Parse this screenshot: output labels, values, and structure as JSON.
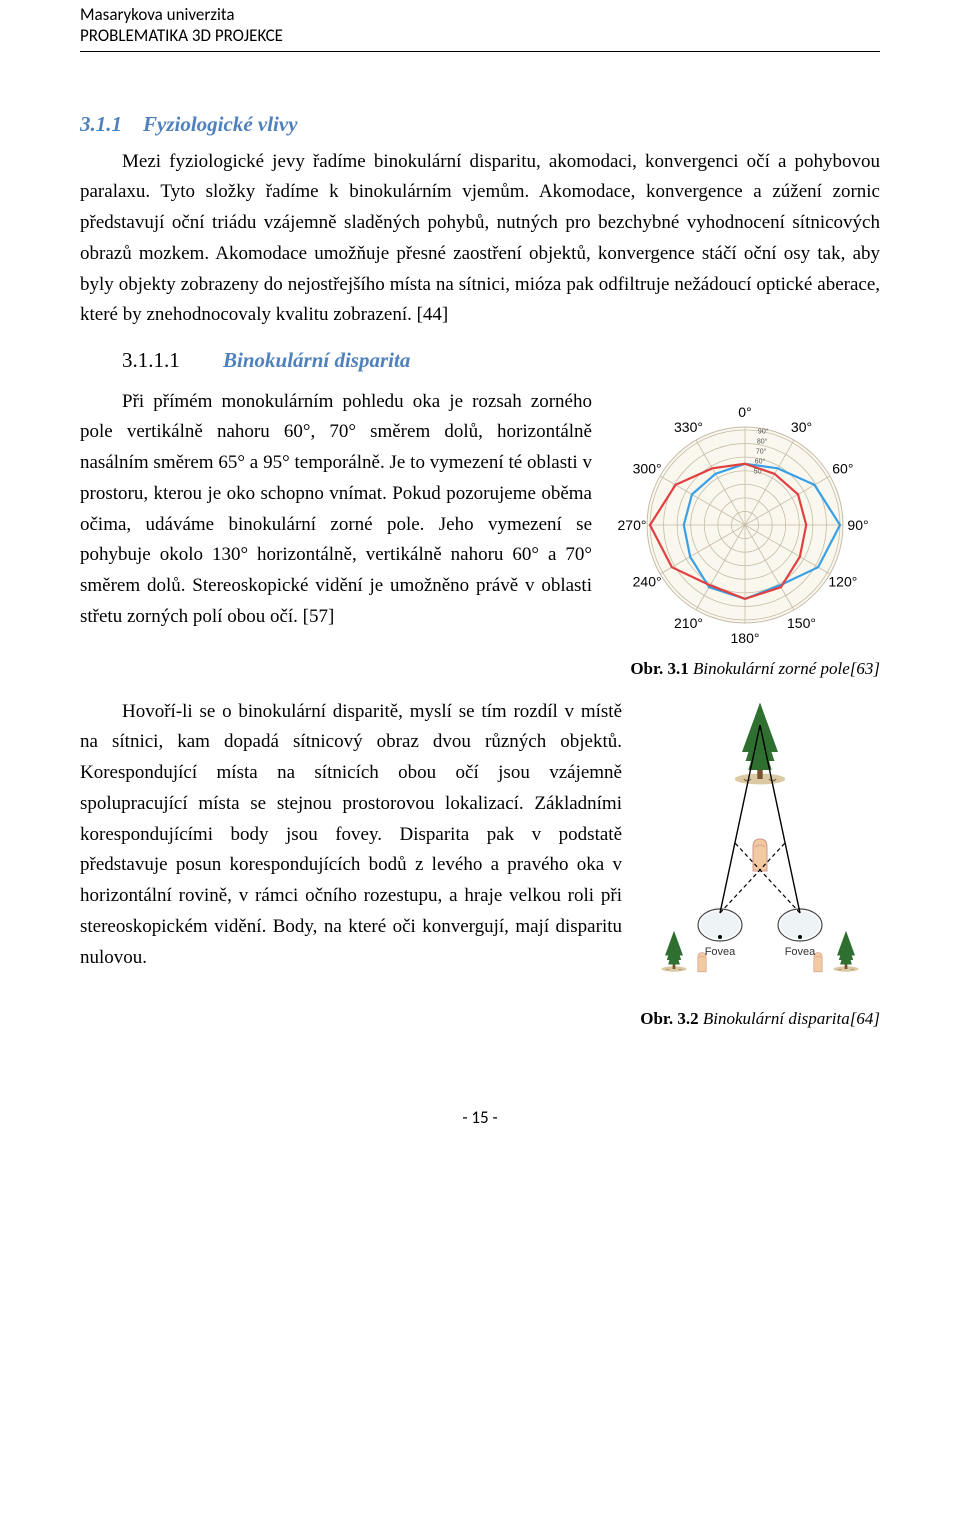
{
  "header": {
    "line1": "Masarykova univerzita",
    "line2": "PROBLEMATIKA 3D PROJEKCE"
  },
  "section": {
    "num": "3.1.1",
    "title": "Fyziologické vlivy",
    "para1": "Mezi fyziologické jevy řadíme binokulární disparitu, akomodaci, konvergenci očí a pohybovou paralaxu. Tyto složky řadíme k binokulárním vjemům. Akomodace, konvergence a zúžení zornic představují oční triádu vzájemně sladěných pohybů, nutných pro bezchybné vyhodnocení sítnicových obrazů mozkem. Akomodace umožňuje přesné zaostření objektů, konvergence stáčí oční osy tak, aby byly objekty zobrazeny do nejostřejšího místa na sítnici, mióza pak odfiltruje nežádoucí optické aberace, které by znehodnocovaly kvalitu zobrazení. [44]"
  },
  "subsection": {
    "num": "3.1.1.1",
    "title": "Binokulární disparita",
    "para1": "Při přímém monokulárním pohledu oka je rozsah zorného pole vertikálně nahoru 60°, 70° směrem dolů, horizontálně nasálním směrem 65° a 95° temporálně. Je to vymezení té oblasti v prostoru, kterou je oko schopno vnímat. Pokud pozorujeme oběma očima, udáváme binokulární zorné pole. Jeho vymezení se pohybuje okolo 130° horizontálně, vertikálně nahoru 60° a 70° směrem dolů. Stereoskopické vidění je umožněno právě v oblasti střetu zorných polí obou očí. [57]",
    "para2": "Hovoří-li se o binokulární disparitě, myslí se tím rozdíl v místě na sítnici, kam dopadá sítnicový obraz dvou různých objektů. Korespondující místa na sítnicích obou očí jsou vzájemně spolupracující místa se stejnou prostorovou lokalizací. Základními korespondujícími body jsou fovey. Disparita pak v podstatě představuje posun korespondujících bodů z levého a pravého oka v horizontální rovině, v rámci očního rozestupu, a hraje velkou roli při stereoskopickém vidění. Body, na které oči konvergují, mají disparitu nulovou."
  },
  "fig1": {
    "caption_bold": "Obr. 3.1",
    "caption_italic": " Binokulární zorné pole[63]",
    "angles": [
      "0°",
      "30°",
      "60°",
      "90°",
      "120°",
      "150°",
      "180°",
      "210°",
      "240°",
      "270°",
      "300°",
      "330°"
    ],
    "inner_labels": [
      "90°",
      "80°",
      "70°",
      "60°",
      "50°"
    ],
    "ring_count": 7,
    "colors": {
      "grid": "#c7bca8",
      "left_eye": "#3aa0e6",
      "right_eye": "#e04040",
      "background": "#faf7ee"
    },
    "left_poly_deg_r": [
      [
        0,
        58
      ],
      [
        30,
        62
      ],
      [
        60,
        76
      ],
      [
        90,
        90
      ],
      [
        120,
        80
      ],
      [
        150,
        66
      ],
      [
        180,
        70
      ],
      [
        210,
        68
      ],
      [
        240,
        60
      ],
      [
        270,
        58
      ],
      [
        300,
        58
      ],
      [
        330,
        56
      ]
    ],
    "right_poly_deg_r": [
      [
        0,
        58
      ],
      [
        30,
        56
      ],
      [
        60,
        58
      ],
      [
        90,
        58
      ],
      [
        120,
        60
      ],
      [
        150,
        68
      ],
      [
        180,
        70
      ],
      [
        210,
        66
      ],
      [
        240,
        80
      ],
      [
        270,
        90
      ],
      [
        300,
        76
      ],
      [
        330,
        62
      ]
    ]
  },
  "fig2": {
    "caption_bold": "Obr. 3.2",
    "caption_italic": " Binokulární disparita[64]",
    "fovea_label": "Fovea",
    "colors": {
      "tree_green": "#2f6f2f",
      "tree_trunk": "#7a5230",
      "ground": "#cbb27a",
      "finger": "#f2c9a0",
      "eye_outline": "#444444",
      "line_solid": "#000000",
      "line_dash": "#000000",
      "background": "#ffffff"
    }
  },
  "page_number": "- 15 -"
}
